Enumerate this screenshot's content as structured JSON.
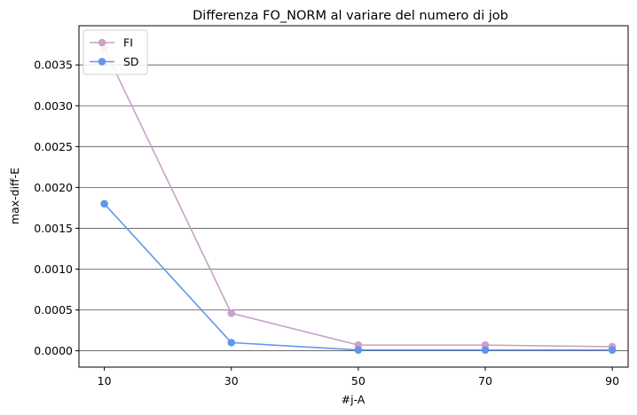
{
  "chart_data": {
    "type": "line",
    "title": "Differenza FO_NORM al variare del numero di job",
    "xlabel": "#j-A",
    "ylabel": "max-diff-E",
    "x": [
      10,
      30,
      50,
      70,
      90
    ],
    "xticks": [
      "10",
      "30",
      "50",
      "70",
      "90"
    ],
    "xlim": [
      6,
      92.5
    ],
    "ylim": [
      -0.0002,
      0.00398
    ],
    "yticks": [
      0.0,
      0.0005,
      0.001,
      0.0015,
      0.002,
      0.0025,
      0.003,
      0.0035
    ],
    "ytick_labels": [
      "0.0000",
      "0.0005",
      "0.0010",
      "0.0015",
      "0.0020",
      "0.0025",
      "0.0030",
      "0.0035"
    ],
    "grid": "horizontal",
    "legend_position": "top-left",
    "series": [
      {
        "name": "FI",
        "color": "#c8a2c8",
        "values": [
          0.0037,
          0.00046,
          7e-05,
          7e-05,
          5e-05
        ]
      },
      {
        "name": "SD",
        "color": "#6495ed",
        "values": [
          0.0018,
          0.0001,
          1e-05,
          1e-05,
          1e-05
        ]
      }
    ]
  }
}
